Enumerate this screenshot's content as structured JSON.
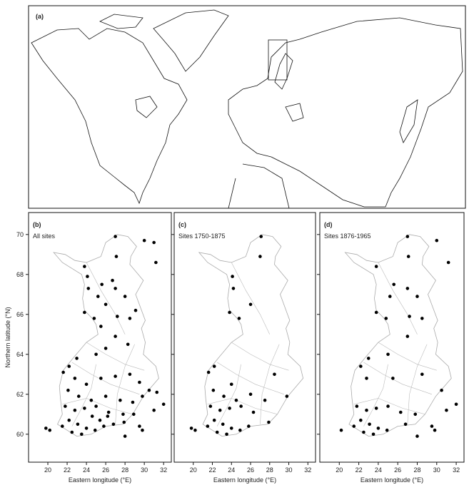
{
  "map_panel": {
    "label": "(a)"
  },
  "chart_data": [
    {
      "type": "scatter",
      "label": "(b)",
      "subtitle": "All sites",
      "y_label": "Northern latitude (°N)",
      "x_label": "Eastern longitude (°E)",
      "color": "#000000",
      "x": [
        27.0,
        30.0,
        31.0,
        31.2,
        27.1,
        23.8,
        24.1,
        25.6,
        26.7,
        24.2,
        27.0,
        25.2,
        28.0,
        26.0,
        23.8,
        24.8,
        25.5,
        27.2,
        28.5,
        29.1,
        27.0,
        28.3,
        26.0,
        25.0,
        23.0,
        22.2,
        21.6,
        22.8,
        24.0,
        25.5,
        27.0,
        28.5,
        29.5,
        30.5,
        22.1,
        23.2,
        24.5,
        26.0,
        27.5,
        28.8,
        29.8,
        31.3,
        32.0,
        31.0,
        21.8,
        22.8,
        23.8,
        25.0,
        26.3,
        27.8,
        28.9,
        22.2,
        23.1,
        24.0,
        24.9,
        25.8,
        26.8,
        27.9,
        29.5,
        20.2,
        19.8,
        21.5,
        22.5,
        23.5,
        24.6,
        25.4,
        26.2,
        29.8,
        28.0
      ],
      "y": [
        69.9,
        69.7,
        69.6,
        68.6,
        68.9,
        68.4,
        67.9,
        67.5,
        67.7,
        67.3,
        67.3,
        66.9,
        66.9,
        66.5,
        66.1,
        65.8,
        65.4,
        65.9,
        65.8,
        66.2,
        64.9,
        64.5,
        64.3,
        64.0,
        63.8,
        63.4,
        63.1,
        62.8,
        62.5,
        62.8,
        62.9,
        63.0,
        62.6,
        62.2,
        62.2,
        61.9,
        61.7,
        61.9,
        61.7,
        61.6,
        61.9,
        62.1,
        61.5,
        61.2,
        61.4,
        61.2,
        61.3,
        61.4,
        61.1,
        61.0,
        61.0,
        60.7,
        60.5,
        60.3,
        60.2,
        60.4,
        60.5,
        60.6,
        60.4,
        60.2,
        60.3,
        60.4,
        60.1,
        60.0,
        60.9,
        60.7,
        60.9,
        60.2,
        59.9
      ],
      "xlim": [
        18,
        32.8
      ],
      "ylim": [
        58.6,
        71.1
      ],
      "xticks": [
        20,
        22,
        24,
        26,
        28,
        30,
        32
      ],
      "yticks": [
        60,
        62,
        64,
        66,
        68,
        70
      ]
    },
    {
      "type": "scatter",
      "label": "(c)",
      "subtitle": "Sites 1750-1875",
      "x_label": "Eastern longitude (°E)",
      "color": "#000000",
      "x": [
        27.0,
        24.1,
        24.2,
        26.0,
        23.8,
        24.8,
        22.2,
        21.6,
        24.0,
        26.0,
        28.5,
        22.1,
        23.2,
        24.5,
        27.5,
        29.8,
        21.8,
        22.8,
        23.8,
        25.0,
        26.3,
        22.2,
        23.1,
        24.0,
        24.9,
        25.8,
        20.2,
        19.8,
        21.5,
        22.5,
        23.5,
        27.9,
        27.1
      ],
      "y": [
        68.9,
        67.9,
        67.3,
        66.5,
        66.1,
        65.8,
        63.4,
        63.1,
        62.5,
        62.0,
        63.0,
        62.2,
        61.9,
        61.7,
        61.7,
        61.9,
        61.4,
        61.2,
        61.3,
        61.4,
        61.1,
        60.7,
        60.5,
        60.3,
        60.2,
        60.4,
        60.2,
        60.3,
        60.4,
        60.1,
        60.0,
        60.6,
        69.9
      ],
      "xlim": [
        18,
        32.8
      ],
      "ylim": [
        58.6,
        71.1
      ],
      "xticks": [
        20,
        22,
        24,
        26,
        28,
        30,
        32
      ],
      "yticks": [
        60,
        62,
        64,
        66,
        68,
        70
      ]
    },
    {
      "type": "scatter",
      "label": "(d)",
      "subtitle": "Sites 1876-1965",
      "x_label": "Eastern longitude (°E)",
      "color": "#000000",
      "x": [
        27.0,
        30.0,
        31.2,
        27.1,
        23.8,
        25.6,
        27.0,
        25.2,
        28.0,
        23.8,
        24.8,
        27.2,
        28.5,
        27.0,
        25.0,
        23.0,
        22.2,
        22.8,
        25.5,
        28.5,
        30.5,
        32.0,
        31.0,
        21.8,
        22.8,
        23.8,
        25.0,
        26.3,
        27.8,
        22.2,
        23.1,
        24.0,
        24.9,
        26.8,
        29.5,
        20.2,
        21.5,
        22.5,
        23.5,
        29.8,
        28.0
      ],
      "y": [
        69.9,
        69.7,
        68.6,
        68.9,
        68.4,
        67.5,
        67.3,
        66.9,
        66.9,
        66.1,
        65.8,
        65.9,
        65.8,
        64.9,
        64.0,
        63.8,
        63.4,
        62.8,
        62.8,
        63.0,
        62.2,
        61.5,
        61.2,
        61.4,
        61.2,
        61.3,
        61.4,
        61.1,
        61.0,
        60.7,
        60.5,
        60.3,
        60.2,
        60.5,
        60.4,
        60.2,
        60.4,
        60.1,
        60.0,
        60.2,
        59.9
      ],
      "xlim": [
        18,
        32.8
      ],
      "ylim": [
        58.6,
        71.1
      ],
      "xticks": [
        20,
        22,
        24,
        26,
        28,
        30,
        32
      ],
      "yticks": [
        60,
        62,
        64,
        66,
        68,
        70
      ]
    }
  ]
}
